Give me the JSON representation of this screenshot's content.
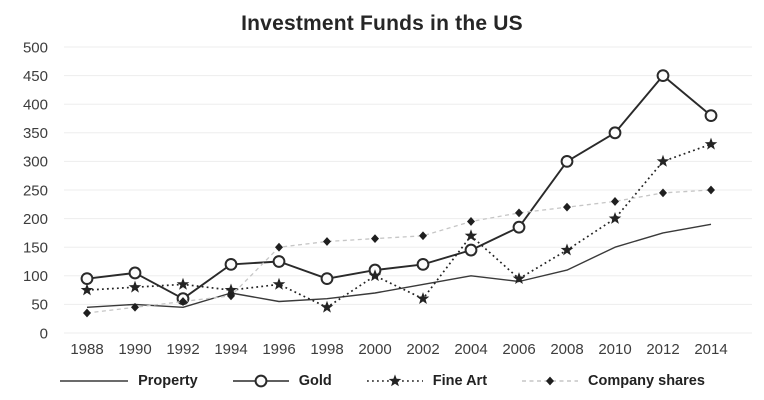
{
  "title": "Investment Funds in the US",
  "colors": {
    "ink": "#2a2a2a",
    "property_line": "#3a3a3a",
    "gold_line": "#2a2a2a",
    "fine_art_line": "#242424",
    "company_line": "#c6c6c6",
    "marker_fill_dark": "#1f1f1f",
    "circle_fill": "#fcfcfc",
    "grid": "#ededed",
    "axis_label": "#3d3d3d"
  },
  "chart_data": {
    "type": "line",
    "title": "Investment Funds in the US",
    "xlabel": "",
    "ylabel": "",
    "x": [
      1988,
      1990,
      1992,
      1994,
      1996,
      1998,
      2000,
      2002,
      2004,
      2006,
      2008,
      2010,
      2012,
      2014
    ],
    "ylim": [
      0,
      500
    ],
    "ytick_step": 50,
    "grid": "horizontal",
    "legend_position": "bottom",
    "series": [
      {
        "name": "Property",
        "marker": "none",
        "line": "solid",
        "color": "#3a3a3a",
        "values": [
          45,
          50,
          45,
          70,
          55,
          60,
          70,
          85,
          100,
          90,
          110,
          150,
          175,
          190
        ]
      },
      {
        "name": "Gold",
        "marker": "circle-open",
        "line": "solid",
        "color": "#2a2a2a",
        "values": [
          95,
          105,
          60,
          120,
          125,
          95,
          110,
          120,
          145,
          185,
          300,
          350,
          450,
          380
        ]
      },
      {
        "name": "Fine Art",
        "marker": "star",
        "line": "dotted",
        "color": "#242424",
        "values": [
          75,
          80,
          85,
          75,
          85,
          45,
          100,
          60,
          170,
          95,
          145,
          200,
          300,
          330
        ]
      },
      {
        "name": "Company shares",
        "marker": "diamond",
        "line": "dashed",
        "color": "#c6c6c6",
        "marker_color": "#1f1f1f",
        "values": [
          35,
          45,
          55,
          65,
          150,
          160,
          165,
          170,
          195,
          210,
          220,
          230,
          245,
          250
        ]
      }
    ]
  }
}
